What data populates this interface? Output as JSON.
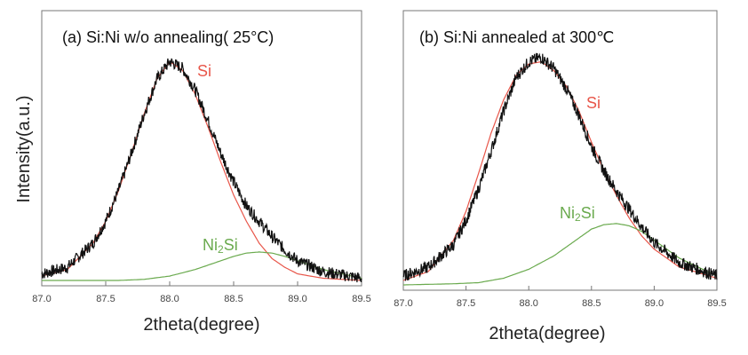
{
  "figure": {
    "ylabel": "Intensity(a.u.)"
  },
  "chart_data": [
    {
      "type": "line",
      "title": "(a) Si:Ni w/o annealing( 25°C)",
      "xlabel": "2theta(degree)",
      "ylabel": "Intensity(a.u.)",
      "xlim": [
        87.0,
        89.5
      ],
      "ylim": [
        0,
        1.05
      ],
      "x_ticks": [
        "87.0",
        "87.5",
        "88.0",
        "88.5",
        "89.0",
        "89.5"
      ],
      "grid": false,
      "series": [
        {
          "name": "Si",
          "color": "#e8564a",
          "x": [
            87.0,
            87.2,
            87.4,
            87.5,
            87.6,
            87.7,
            87.8,
            87.9,
            88.0,
            88.1,
            88.2,
            88.3,
            88.4,
            88.5,
            88.6,
            88.7,
            88.8,
            88.9,
            89.0,
            89.2,
            89.5
          ],
          "y": [
            0.02,
            0.05,
            0.17,
            0.27,
            0.41,
            0.58,
            0.76,
            0.92,
            1.0,
            0.96,
            0.85,
            0.7,
            0.54,
            0.39,
            0.27,
            0.17,
            0.1,
            0.06,
            0.03,
            0.01,
            0.0
          ]
        },
        {
          "name": "Ni2Si",
          "color": "#6aaa4e",
          "x": [
            87.0,
            87.6,
            87.8,
            88.0,
            88.2,
            88.4,
            88.5,
            88.6,
            88.7,
            88.8,
            88.9,
            89.0,
            89.2,
            89.5
          ],
          "y": [
            0.0,
            0.0,
            0.005,
            0.02,
            0.05,
            0.09,
            0.11,
            0.125,
            0.13,
            0.125,
            0.11,
            0.09,
            0.05,
            0.01
          ]
        },
        {
          "name": "data",
          "color": "#111111",
          "x": [
            87.0,
            87.2,
            87.4,
            87.5,
            87.6,
            87.7,
            87.8,
            87.9,
            88.0,
            88.1,
            88.2,
            88.3,
            88.4,
            88.5,
            88.6,
            88.7,
            88.8,
            88.9,
            89.0,
            89.2,
            89.5
          ],
          "y": [
            0.03,
            0.06,
            0.17,
            0.27,
            0.41,
            0.58,
            0.76,
            0.92,
            1.0,
            0.97,
            0.87,
            0.73,
            0.58,
            0.45,
            0.34,
            0.27,
            0.2,
            0.14,
            0.09,
            0.04,
            0.01
          ]
        }
      ],
      "labels": {
        "si": "Si",
        "ni2si_base": "Ni",
        "ni2si_sub": "2",
        "ni2si_tail": "Si"
      }
    },
    {
      "type": "line",
      "title": "(b) Si:Ni annealed at 300℃",
      "xlabel": "2theta(degree)",
      "ylabel": "",
      "xlim": [
        87.0,
        89.5
      ],
      "ylim": [
        0,
        1.05
      ],
      "x_ticks": [
        "87.0",
        "87.5",
        "88.0",
        "88.5",
        "89.0",
        "89.5"
      ],
      "grid": false,
      "series": [
        {
          "name": "Si",
          "color": "#e8564a",
          "x": [
            87.0,
            87.2,
            87.4,
            87.5,
            87.6,
            87.7,
            87.8,
            87.9,
            88.0,
            88.1,
            88.2,
            88.3,
            88.4,
            88.5,
            88.6,
            88.7,
            88.8,
            88.9,
            89.0,
            89.2,
            89.5
          ],
          "y": [
            0.02,
            0.06,
            0.2,
            0.33,
            0.5,
            0.68,
            0.83,
            0.94,
            0.99,
            1.0,
            0.96,
            0.89,
            0.78,
            0.64,
            0.51,
            0.4,
            0.3,
            0.22,
            0.16,
            0.08,
            0.03
          ]
        },
        {
          "name": "Ni2Si",
          "color": "#6aaa4e",
          "x": [
            87.0,
            87.4,
            87.6,
            87.8,
            88.0,
            88.2,
            88.4,
            88.5,
            88.6,
            88.7,
            88.8,
            88.9,
            89.0,
            89.2,
            89.5
          ],
          "y": [
            0.0,
            0.005,
            0.01,
            0.03,
            0.07,
            0.13,
            0.21,
            0.25,
            0.27,
            0.275,
            0.265,
            0.24,
            0.2,
            0.12,
            0.04
          ]
        },
        {
          "name": "data",
          "color": "#111111",
          "x": [
            87.0,
            87.2,
            87.4,
            87.5,
            87.6,
            87.7,
            87.8,
            87.9,
            88.0,
            88.1,
            88.2,
            88.3,
            88.4,
            88.5,
            88.6,
            88.7,
            88.8,
            88.9,
            89.0,
            89.2,
            89.5
          ],
          "y": [
            0.04,
            0.08,
            0.18,
            0.29,
            0.43,
            0.6,
            0.78,
            0.93,
            1.0,
            1.02,
            0.97,
            0.88,
            0.76,
            0.62,
            0.51,
            0.42,
            0.34,
            0.26,
            0.19,
            0.1,
            0.04
          ]
        }
      ],
      "labels": {
        "si": "Si",
        "ni2si_base": "Ni",
        "ni2si_sub": "2",
        "ni2si_tail": "Si"
      }
    }
  ]
}
